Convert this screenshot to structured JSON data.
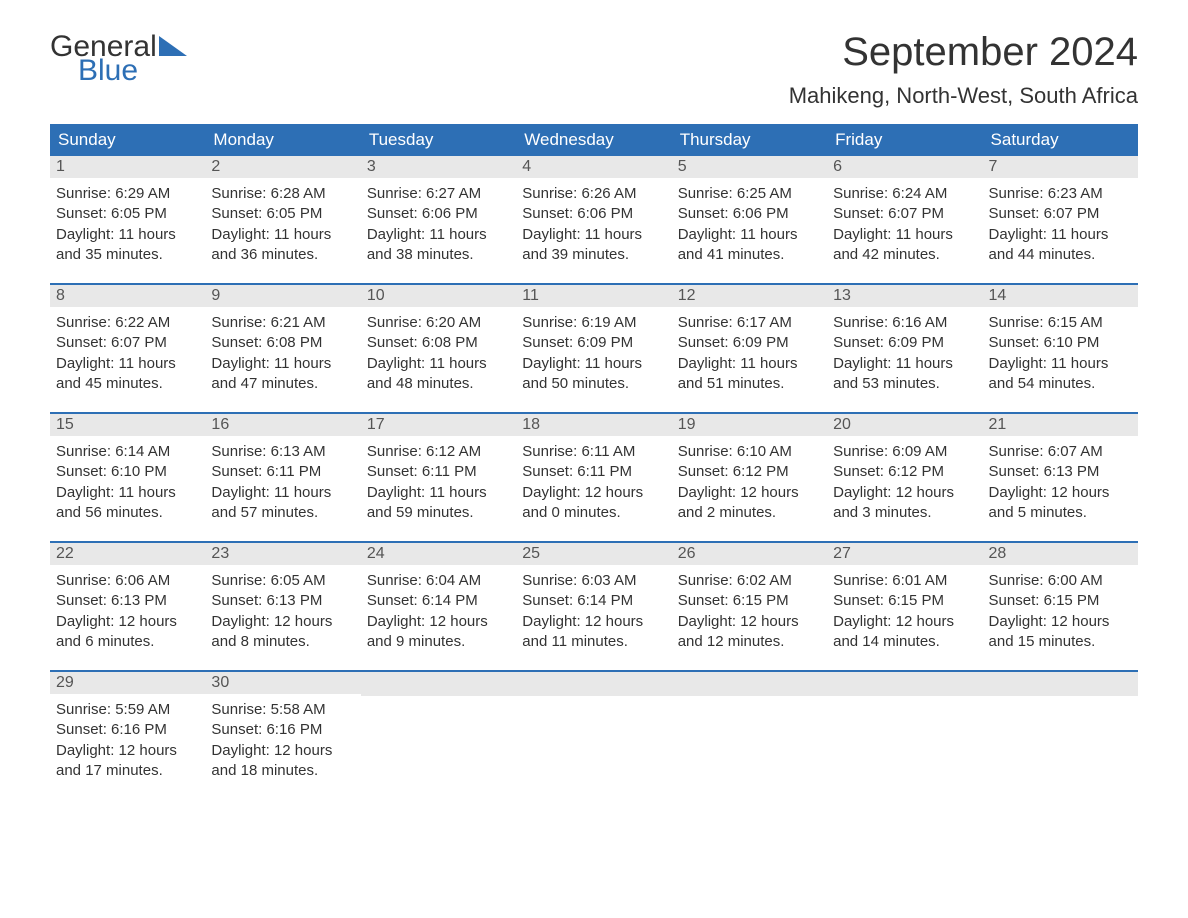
{
  "logo": {
    "text1": "General",
    "text2": "Blue",
    "triangle_color": "#2d6fb5"
  },
  "title": "September 2024",
  "location": "Mahikeng, North-West, South Africa",
  "colors": {
    "header_bg": "#2d6fb5",
    "header_text": "#ffffff",
    "daynum_bg": "#e8e8e8",
    "daynum_text": "#555555",
    "body_text": "#333333",
    "row_border": "#2d6fb5"
  },
  "weekdays": [
    "Sunday",
    "Monday",
    "Tuesday",
    "Wednesday",
    "Thursday",
    "Friday",
    "Saturday"
  ],
  "weeks": [
    [
      {
        "day": "1",
        "sunrise": "Sunrise: 6:29 AM",
        "sunset": "Sunset: 6:05 PM",
        "daylight1": "Daylight: 11 hours",
        "daylight2": "and 35 minutes."
      },
      {
        "day": "2",
        "sunrise": "Sunrise: 6:28 AM",
        "sunset": "Sunset: 6:05 PM",
        "daylight1": "Daylight: 11 hours",
        "daylight2": "and 36 minutes."
      },
      {
        "day": "3",
        "sunrise": "Sunrise: 6:27 AM",
        "sunset": "Sunset: 6:06 PM",
        "daylight1": "Daylight: 11 hours",
        "daylight2": "and 38 minutes."
      },
      {
        "day": "4",
        "sunrise": "Sunrise: 6:26 AM",
        "sunset": "Sunset: 6:06 PM",
        "daylight1": "Daylight: 11 hours",
        "daylight2": "and 39 minutes."
      },
      {
        "day": "5",
        "sunrise": "Sunrise: 6:25 AM",
        "sunset": "Sunset: 6:06 PM",
        "daylight1": "Daylight: 11 hours",
        "daylight2": "and 41 minutes."
      },
      {
        "day": "6",
        "sunrise": "Sunrise: 6:24 AM",
        "sunset": "Sunset: 6:07 PM",
        "daylight1": "Daylight: 11 hours",
        "daylight2": "and 42 minutes."
      },
      {
        "day": "7",
        "sunrise": "Sunrise: 6:23 AM",
        "sunset": "Sunset: 6:07 PM",
        "daylight1": "Daylight: 11 hours",
        "daylight2": "and 44 minutes."
      }
    ],
    [
      {
        "day": "8",
        "sunrise": "Sunrise: 6:22 AM",
        "sunset": "Sunset: 6:07 PM",
        "daylight1": "Daylight: 11 hours",
        "daylight2": "and 45 minutes."
      },
      {
        "day": "9",
        "sunrise": "Sunrise: 6:21 AM",
        "sunset": "Sunset: 6:08 PM",
        "daylight1": "Daylight: 11 hours",
        "daylight2": "and 47 minutes."
      },
      {
        "day": "10",
        "sunrise": "Sunrise: 6:20 AM",
        "sunset": "Sunset: 6:08 PM",
        "daylight1": "Daylight: 11 hours",
        "daylight2": "and 48 minutes."
      },
      {
        "day": "11",
        "sunrise": "Sunrise: 6:19 AM",
        "sunset": "Sunset: 6:09 PM",
        "daylight1": "Daylight: 11 hours",
        "daylight2": "and 50 minutes."
      },
      {
        "day": "12",
        "sunrise": "Sunrise: 6:17 AM",
        "sunset": "Sunset: 6:09 PM",
        "daylight1": "Daylight: 11 hours",
        "daylight2": "and 51 minutes."
      },
      {
        "day": "13",
        "sunrise": "Sunrise: 6:16 AM",
        "sunset": "Sunset: 6:09 PM",
        "daylight1": "Daylight: 11 hours",
        "daylight2": "and 53 minutes."
      },
      {
        "day": "14",
        "sunrise": "Sunrise: 6:15 AM",
        "sunset": "Sunset: 6:10 PM",
        "daylight1": "Daylight: 11 hours",
        "daylight2": "and 54 minutes."
      }
    ],
    [
      {
        "day": "15",
        "sunrise": "Sunrise: 6:14 AM",
        "sunset": "Sunset: 6:10 PM",
        "daylight1": "Daylight: 11 hours",
        "daylight2": "and 56 minutes."
      },
      {
        "day": "16",
        "sunrise": "Sunrise: 6:13 AM",
        "sunset": "Sunset: 6:11 PM",
        "daylight1": "Daylight: 11 hours",
        "daylight2": "and 57 minutes."
      },
      {
        "day": "17",
        "sunrise": "Sunrise: 6:12 AM",
        "sunset": "Sunset: 6:11 PM",
        "daylight1": "Daylight: 11 hours",
        "daylight2": "and 59 minutes."
      },
      {
        "day": "18",
        "sunrise": "Sunrise: 6:11 AM",
        "sunset": "Sunset: 6:11 PM",
        "daylight1": "Daylight: 12 hours",
        "daylight2": "and 0 minutes."
      },
      {
        "day": "19",
        "sunrise": "Sunrise: 6:10 AM",
        "sunset": "Sunset: 6:12 PM",
        "daylight1": "Daylight: 12 hours",
        "daylight2": "and 2 minutes."
      },
      {
        "day": "20",
        "sunrise": "Sunrise: 6:09 AM",
        "sunset": "Sunset: 6:12 PM",
        "daylight1": "Daylight: 12 hours",
        "daylight2": "and 3 minutes."
      },
      {
        "day": "21",
        "sunrise": "Sunrise: 6:07 AM",
        "sunset": "Sunset: 6:13 PM",
        "daylight1": "Daylight: 12 hours",
        "daylight2": "and 5 minutes."
      }
    ],
    [
      {
        "day": "22",
        "sunrise": "Sunrise: 6:06 AM",
        "sunset": "Sunset: 6:13 PM",
        "daylight1": "Daylight: 12 hours",
        "daylight2": "and 6 minutes."
      },
      {
        "day": "23",
        "sunrise": "Sunrise: 6:05 AM",
        "sunset": "Sunset: 6:13 PM",
        "daylight1": "Daylight: 12 hours",
        "daylight2": "and 8 minutes."
      },
      {
        "day": "24",
        "sunrise": "Sunrise: 6:04 AM",
        "sunset": "Sunset: 6:14 PM",
        "daylight1": "Daylight: 12 hours",
        "daylight2": "and 9 minutes."
      },
      {
        "day": "25",
        "sunrise": "Sunrise: 6:03 AM",
        "sunset": "Sunset: 6:14 PM",
        "daylight1": "Daylight: 12 hours",
        "daylight2": "and 11 minutes."
      },
      {
        "day": "26",
        "sunrise": "Sunrise: 6:02 AM",
        "sunset": "Sunset: 6:15 PM",
        "daylight1": "Daylight: 12 hours",
        "daylight2": "and 12 minutes."
      },
      {
        "day": "27",
        "sunrise": "Sunrise: 6:01 AM",
        "sunset": "Sunset: 6:15 PM",
        "daylight1": "Daylight: 12 hours",
        "daylight2": "and 14 minutes."
      },
      {
        "day": "28",
        "sunrise": "Sunrise: 6:00 AM",
        "sunset": "Sunset: 6:15 PM",
        "daylight1": "Daylight: 12 hours",
        "daylight2": "and 15 minutes."
      }
    ],
    [
      {
        "day": "29",
        "sunrise": "Sunrise: 5:59 AM",
        "sunset": "Sunset: 6:16 PM",
        "daylight1": "Daylight: 12 hours",
        "daylight2": "and 17 minutes."
      },
      {
        "day": "30",
        "sunrise": "Sunrise: 5:58 AM",
        "sunset": "Sunset: 6:16 PM",
        "daylight1": "Daylight: 12 hours",
        "daylight2": "and 18 minutes."
      },
      {
        "empty": true
      },
      {
        "empty": true
      },
      {
        "empty": true
      },
      {
        "empty": true
      },
      {
        "empty": true
      }
    ]
  ]
}
